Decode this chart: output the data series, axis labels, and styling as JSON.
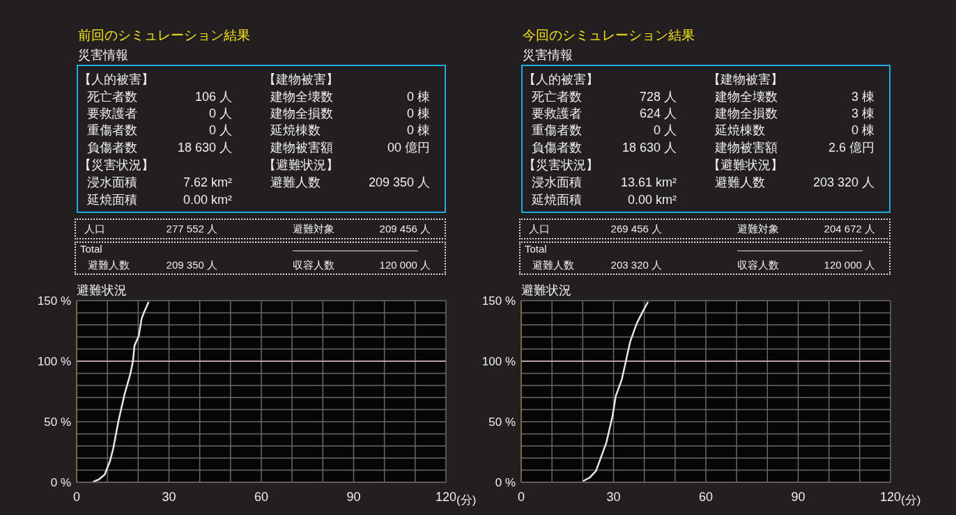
{
  "chart_data": [
    {
      "type": "other",
      "title": "前回のシミュレーション結果",
      "subtitle": "災害情報",
      "annotations": [
        "【人的被害】",
        "【建物被害】",
        "死亡者数",
        "106 人",
        "建物全壊数",
        "0 棟",
        "要救護者",
        "0 人",
        "建物全損数",
        "0 棟",
        "重傷者数",
        "0 人",
        "延焼棟数",
        "0 棟",
        "負傷者数",
        "18 630 人",
        "建物被害額",
        "00 億円",
        "【災害状況】",
        "【避難状況】",
        "浸水面積",
        "7.62 km²",
        "避難人数",
        "209 350 人",
        "延焼面積",
        "0.00 km²",
        "人口",
        "277 552 人",
        "避難対象",
        "209 456 人",
        "Total",
        "避難人数",
        "209 350 人",
        "収容人数",
        "120 000 人"
      ]
    },
    {
      "type": "line",
      "title": "避難状況",
      "xlabel": "(分)",
      "color": "#e6e6e6",
      "x": [
        5.4,
        7.2,
        9.1,
        10.9,
        11.9,
        13.7,
        15.6,
        17.4,
        18.3,
        18.8,
        20.2,
        21.1,
        22.0,
        23.4
      ],
      "values": [
        0.5,
        2.3,
        6.3,
        18,
        28,
        52,
        73,
        89,
        100,
        113,
        121,
        135,
        141,
        149
      ],
      "xlim": [
        0,
        120
      ],
      "xticks": [
        0,
        {
          "value": 10,
          "label": null
        },
        {
          "value": 20,
          "label": null
        },
        30,
        {
          "value": 40,
          "label": null
        },
        {
          "value": 50,
          "label": null
        },
        60,
        {
          "value": 70,
          "label": null
        },
        {
          "value": 80,
          "label": null
        },
        90,
        {
          "value": 100,
          "label": null
        },
        {
          "value": 110,
          "label": null
        },
        120
      ],
      "ylim": [
        0,
        150
      ],
      "yticks": [
        {
          "value": 0,
          "label": "0 %"
        },
        {
          "value": 10,
          "label": null
        },
        {
          "value": 20,
          "label": null
        },
        {
          "value": 30,
          "label": null
        },
        {
          "value": 40,
          "label": null
        },
        {
          "value": 50,
          "label": "50 %"
        },
        {
          "value": 60,
          "label": null
        },
        {
          "value": 70,
          "label": null
        },
        {
          "value": 80,
          "label": null
        },
        {
          "value": 90,
          "label": null
        },
        {
          "value": 100,
          "label": "100 %"
        },
        {
          "value": 110,
          "label": null
        },
        {
          "value": 120,
          "label": null
        },
        {
          "value": 130,
          "label": null
        },
        {
          "value": 140,
          "label": null
        },
        {
          "value": 150,
          "label": "150 %"
        }
      ],
      "grid": true,
      "ref_lines": [
        {
          "axis": "y",
          "value": 100,
          "color": "#b8a0ac"
        }
      ]
    },
    {
      "type": "other",
      "title": "今回のシミュレーション結果",
      "subtitle": "災害情報",
      "annotations": [
        "【人的被害】",
        "【建物被害】",
        "死亡者数",
        "728 人",
        "建物全壊数",
        "3 棟",
        "要救護者",
        "624 人",
        "建物全損数",
        "3 棟",
        "重傷者数",
        "0 人",
        "延焼棟数",
        "0 棟",
        "負傷者数",
        "18 630 人",
        "建物被害額",
        "2.6 億円",
        "【災害状況】",
        "【避難状況】",
        "浸水面積",
        "13.61 km²",
        "避難人数",
        "203 320 人",
        "延焼面積",
        "0.00 km²",
        "人口",
        "269 456 人",
        "避難対象",
        "204 672 人",
        "Total",
        "避難人数",
        "203 320 人",
        "収容人数",
        "120 000 人"
      ]
    },
    {
      "type": "line",
      "title": "避難状況",
      "xlabel": "(分)",
      "color": "#e6e6e6",
      "x": [
        20.1,
        22.3,
        24.3,
        25.7,
        27.7,
        29.7,
        30.7,
        32.7,
        34.1,
        35.4,
        37.5,
        39.5,
        41.2
      ],
      "values": [
        1,
        4,
        9.4,
        19,
        33,
        55,
        71,
        85,
        101,
        116,
        131,
        141,
        149
      ],
      "xlim": [
        0,
        120
      ],
      "xticks": [
        0,
        {
          "value": 10,
          "label": null
        },
        {
          "value": 20,
          "label": null
        },
        30,
        {
          "value": 40,
          "label": null
        },
        {
          "value": 50,
          "label": null
        },
        60,
        {
          "value": 70,
          "label": null
        },
        {
          "value": 80,
          "label": null
        },
        90,
        {
          "value": 100,
          "label": null
        },
        {
          "value": 110,
          "label": null
        },
        120
      ],
      "ylim": [
        0,
        150
      ],
      "yticks": [
        {
          "value": 0,
          "label": "0 %"
        },
        {
          "value": 10,
          "label": null
        },
        {
          "value": 20,
          "label": null
        },
        {
          "value": 30,
          "label": null
        },
        {
          "value": 40,
          "label": null
        },
        {
          "value": 50,
          "label": "50 %"
        },
        {
          "value": 60,
          "label": null
        },
        {
          "value": 70,
          "label": null
        },
        {
          "value": 80,
          "label": null
        },
        {
          "value": 90,
          "label": null
        },
        {
          "value": 100,
          "label": "100 %"
        },
        {
          "value": 110,
          "label": null
        },
        {
          "value": 120,
          "label": null
        },
        {
          "value": 130,
          "label": null
        },
        {
          "value": 140,
          "label": null
        },
        {
          "value": 150,
          "label": "150 %"
        }
      ],
      "grid": true,
      "ref_lines": [
        {
          "axis": "y",
          "value": 100,
          "color": "#b8a0ac"
        }
      ]
    }
  ]
}
